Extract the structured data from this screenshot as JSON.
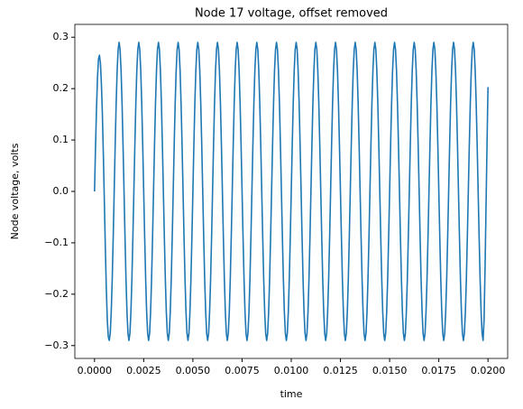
{
  "chart_data": {
    "type": "line",
    "title": "Node 17 voltage, offset removed",
    "xlabel": "time",
    "ylabel": "Node voltage, volts",
    "color": "#1f77b4",
    "xlim": [
      -0.001,
      0.021
    ],
    "ylim": [
      -0.325,
      0.325
    ],
    "xticks": [
      {
        "value": 0,
        "label": "0.0000"
      },
      {
        "value": 0.0025,
        "label": "0.0025"
      },
      {
        "value": 0.005,
        "label": "0.0050"
      },
      {
        "value": 0.0075,
        "label": "0.0075"
      },
      {
        "value": 0.01,
        "label": "0.0100"
      },
      {
        "value": 0.0125,
        "label": "0.0125"
      },
      {
        "value": 0.015,
        "label": "0.0150"
      },
      {
        "value": 0.0175,
        "label": "0.0175"
      },
      {
        "value": 0.02,
        "label": "0.0200"
      }
    ],
    "yticks": [
      {
        "value": -0.3,
        "label": "−0.3"
      },
      {
        "value": -0.2,
        "label": "−0.2"
      },
      {
        "value": -0.1,
        "label": "−0.1"
      },
      {
        "value": 0,
        "label": "0.0"
      },
      {
        "value": 0.1,
        "label": "0.1"
      },
      {
        "value": 0.2,
        "label": "0.2"
      },
      {
        "value": 0.3,
        "label": "0.3"
      }
    ],
    "x": [
      0,
      5e-05,
      0.0001,
      0.00015,
      0.0002,
      0.00025,
      0.0003,
      0.00035,
      0.0004,
      0.00045,
      0.0005,
      0.00055,
      0.0006,
      0.00065,
      0.0007,
      0.00075,
      0.0008,
      0.00085,
      0.0009,
      0.00095,
      0.001,
      0.00105,
      0.0011,
      0.00115,
      0.0012,
      0.00125,
      0.0013,
      0.00135,
      0.0014,
      0.00145,
      0.0015,
      0.00155,
      0.0016,
      0.00165,
      0.0017,
      0.00175,
      0.0018,
      0.00185,
      0.0019,
      0.00195,
      0.002,
      0.00205,
      0.0021,
      0.00215,
      0.0022,
      0.00225,
      0.0023,
      0.00235,
      0.0024,
      0.00245,
      0.0025,
      0.00255,
      0.0026,
      0.00265,
      0.0027,
      0.00275,
      0.0028,
      0.00285,
      0.0029,
      0.00295,
      0.003,
      0.00305,
      0.0031,
      0.00315,
      0.0032,
      0.00325,
      0.0033,
      0.00335,
      0.0034,
      0.00345,
      0.0035,
      0.00355,
      0.0036,
      0.00365,
      0.0037,
      0.00375,
      0.0038,
      0.00385,
      0.0039,
      0.00395,
      0.004,
      0.00405,
      0.0041,
      0.00415,
      0.0042,
      0.00425,
      0.0043,
      0.00435,
      0.0044,
      0.00445,
      0.0045,
      0.00455,
      0.0046,
      0.00465,
      0.0047,
      0.00475,
      0.0048,
      0.00485,
      0.0049,
      0.00495,
      0.005,
      0.00505,
      0.0051,
      0.00515,
      0.0052,
      0.00525,
      0.0053,
      0.00535,
      0.0054,
      0.00545,
      0.0055,
      0.00555,
      0.0056,
      0.00565,
      0.0057,
      0.00575,
      0.0058,
      0.00585,
      0.0059,
      0.00595,
      0.006,
      0.00605,
      0.0061,
      0.00615,
      0.0062,
      0.00625,
      0.0063,
      0.00635,
      0.0064,
      0.00645,
      0.0065,
      0.00655,
      0.0066,
      0.00665,
      0.0067,
      0.00675,
      0.0068,
      0.00685,
      0.0069,
      0.00695,
      0.007,
      0.00705,
      0.0071,
      0.00715,
      0.0072,
      0.00725,
      0.0073,
      0.00735,
      0.0074,
      0.00745,
      0.0075,
      0.00755,
      0.0076,
      0.00765,
      0.0077,
      0.00775,
      0.0078,
      0.00785,
      0.0079,
      0.00795,
      0.008,
      0.00805,
      0.0081,
      0.00815,
      0.0082,
      0.00825,
      0.0083,
      0.00835,
      0.0084,
      0.00845,
      0.0085,
      0.00855,
      0.0086,
      0.00865,
      0.0087,
      0.00875,
      0.0088,
      0.00885,
      0.0089,
      0.00895,
      0.009,
      0.00905,
      0.0091,
      0.00915,
      0.0092,
      0.00925,
      0.0093,
      0.00935,
      0.0094,
      0.00945,
      0.0095,
      0.00955,
      0.0096,
      0.00965,
      0.0097,
      0.00975,
      0.0098,
      0.00985,
      0.0099,
      0.00995,
      0.01,
      0.01005,
      0.0101,
      0.01015,
      0.0102,
      0.01025,
      0.0103,
      0.01035,
      0.0104,
      0.01045,
      0.0105,
      0.01055,
      0.0106,
      0.01065,
      0.0107,
      0.01075,
      0.0108,
      0.01085,
      0.0109,
      0.01095,
      0.011,
      0.01105,
      0.0111,
      0.01115,
      0.0112,
      0.01125,
      0.0113,
      0.01135,
      0.0114,
      0.01145,
      0.0115,
      0.01155,
      0.0116,
      0.01165,
      0.0117,
      0.01175,
      0.0118,
      0.01185,
      0.0119,
      0.01195,
      0.012,
      0.01205,
      0.0121,
      0.01215,
      0.0122,
      0.01225,
      0.0123,
      0.01235,
      0.0124,
      0.01245,
      0.0125,
      0.01255,
      0.0126,
      0.01265,
      0.0127,
      0.01275,
      0.0128,
      0.01285,
      0.0129,
      0.01295,
      0.013,
      0.01305,
      0.0131,
      0.01315,
      0.0132,
      0.01325,
      0.0133,
      0.01335,
      0.0134,
      0.01345,
      0.0135,
      0.01355,
      0.0136,
      0.01365,
      0.0137,
      0.01375,
      0.0138,
      0.01385,
      0.0139,
      0.01395,
      0.014,
      0.01405,
      0.0141,
      0.01415,
      0.0142,
      0.01425,
      0.0143,
      0.01435,
      0.0144,
      0.01445,
      0.0145,
      0.01455,
      0.0146,
      0.01465,
      0.0147,
      0.01475,
      0.0148,
      0.01485,
      0.0149,
      0.01495,
      0.015,
      0.01505,
      0.0151,
      0.01515,
      0.0152,
      0.01525,
      0.0153,
      0.01535,
      0.0154,
      0.01545,
      0.0155,
      0.01555,
      0.0156,
      0.01565,
      0.0157,
      0.01575,
      0.0158,
      0.01585,
      0.0159,
      0.01595,
      0.016,
      0.01605,
      0.0161,
      0.01615,
      0.0162,
      0.01625,
      0.0163,
      0.01635,
      0.0164,
      0.01645,
      0.0165,
      0.01655,
      0.0166,
      0.01665,
      0.0167,
      0.01675,
      0.0168,
      0.01685,
      0.0169,
      0.01695,
      0.017,
      0.01705,
      0.0171,
      0.01715,
      0.0172,
      0.01725,
      0.0173,
      0.01735,
      0.0174,
      0.01745,
      0.0175,
      0.01755,
      0.0176,
      0.01765,
      0.0177,
      0.01775,
      0.0178,
      0.01785,
      0.0179,
      0.01795,
      0.018,
      0.01805,
      0.0181,
      0.01815,
      0.0182,
      0.01825,
      0.0183,
      0.01835,
      0.0184,
      0.01845,
      0.0185,
      0.01855,
      0.0186,
      0.01865,
      0.0187,
      0.01875,
      0.0188,
      0.01885,
      0.0189,
      0.01895,
      0.019,
      0.01905,
      0.0191,
      0.01915,
      0.0192,
      0.01925,
      0.0193,
      0.01935,
      0.0194,
      0.01945,
      0.0195,
      0.01955,
      0.0196,
      0.01965,
      0.0197,
      0.01975,
      0.0198,
      0.01985,
      0.0199,
      0.01995,
      0.02
    ],
    "values": [
      0,
      0.085,
      0.16,
      0.22,
      0.257,
      0.265,
      0.25,
      0.21,
      0.15,
      0.07,
      -0.02,
      -0.11,
      -0.19,
      -0.25,
      -0.283,
      -0.29,
      -0.276,
      -0.235,
      -0.171,
      -0.09,
      0,
      0.09,
      0.171,
      0.235,
      0.276,
      0.29,
      0.276,
      0.235,
      0.171,
      0.09,
      0,
      -0.09,
      -0.171,
      -0.235,
      -0.276,
      -0.29,
      -0.276,
      -0.235,
      -0.171,
      -0.09,
      0,
      0.09,
      0.171,
      0.235,
      0.276,
      0.29,
      0.276,
      0.235,
      0.171,
      0.09,
      0,
      -0.09,
      -0.171,
      -0.235,
      -0.276,
      -0.29,
      -0.276,
      -0.235,
      -0.171,
      -0.09,
      0,
      0.09,
      0.171,
      0.235,
      0.276,
      0.29,
      0.276,
      0.235,
      0.171,
      0.09,
      0,
      -0.09,
      -0.171,
      -0.235,
      -0.276,
      -0.29,
      -0.276,
      -0.235,
      -0.171,
      -0.09,
      0,
      0.09,
      0.171,
      0.235,
      0.276,
      0.29,
      0.276,
      0.235,
      0.171,
      0.09,
      0,
      -0.09,
      -0.171,
      -0.235,
      -0.276,
      -0.29,
      -0.276,
      -0.235,
      -0.171,
      -0.09,
      0,
      0.09,
      0.171,
      0.235,
      0.276,
      0.29,
      0.276,
      0.235,
      0.171,
      0.09,
      0,
      -0.09,
      -0.171,
      -0.235,
      -0.276,
      -0.29,
      -0.276,
      -0.235,
      -0.171,
      -0.09,
      0,
      0.09,
      0.171,
      0.235,
      0.276,
      0.29,
      0.276,
      0.235,
      0.171,
      0.09,
      0,
      -0.09,
      -0.171,
      -0.235,
      -0.276,
      -0.29,
      -0.276,
      -0.235,
      -0.171,
      -0.09,
      0,
      0.09,
      0.171,
      0.235,
      0.276,
      0.29,
      0.276,
      0.235,
      0.171,
      0.09,
      0,
      -0.09,
      -0.171,
      -0.235,
      -0.276,
      -0.29,
      -0.276,
      -0.235,
      -0.171,
      -0.09,
      0,
      0.09,
      0.171,
      0.235,
      0.276,
      0.29,
      0.276,
      0.235,
      0.171,
      0.09,
      0,
      -0.09,
      -0.171,
      -0.235,
      -0.276,
      -0.29,
      -0.276,
      -0.235,
      -0.171,
      -0.09,
      0,
      0.09,
      0.171,
      0.235,
      0.276,
      0.29,
      0.276,
      0.235,
      0.171,
      0.09,
      0,
      -0.09,
      -0.171,
      -0.235,
      -0.276,
      -0.29,
      -0.276,
      -0.235,
      -0.171,
      -0.09,
      0,
      0.09,
      0.171,
      0.235,
      0.276,
      0.29,
      0.276,
      0.235,
      0.171,
      0.09,
      0,
      -0.09,
      -0.171,
      -0.235,
      -0.276,
      -0.29,
      -0.276,
      -0.235,
      -0.171,
      -0.09,
      0,
      0.09,
      0.171,
      0.235,
      0.276,
      0.29,
      0.276,
      0.235,
      0.171,
      0.09,
      0,
      -0.09,
      -0.171,
      -0.235,
      -0.276,
      -0.29,
      -0.276,
      -0.235,
      -0.171,
      -0.09,
      0,
      0.09,
      0.171,
      0.235,
      0.276,
      0.29,
      0.276,
      0.235,
      0.171,
      0.09,
      0,
      -0.09,
      -0.171,
      -0.235,
      -0.276,
      -0.29,
      -0.276,
      -0.235,
      -0.171,
      -0.09,
      0,
      0.09,
      0.171,
      0.235,
      0.276,
      0.29,
      0.276,
      0.235,
      0.171,
      0.09,
      0,
      -0.09,
      -0.171,
      -0.235,
      -0.276,
      -0.29,
      -0.276,
      -0.235,
      -0.171,
      -0.09,
      0,
      0.09,
      0.171,
      0.235,
      0.276,
      0.29,
      0.276,
      0.235,
      0.171,
      0.09,
      0,
      -0.09,
      -0.171,
      -0.235,
      -0.276,
      -0.29,
      -0.276,
      -0.235,
      -0.171,
      -0.09,
      0,
      0.09,
      0.171,
      0.235,
      0.276,
      0.29,
      0.276,
      0.235,
      0.171,
      0.09,
      0,
      -0.09,
      -0.171,
      -0.235,
      -0.276,
      -0.29,
      -0.276,
      -0.235,
      -0.171,
      -0.09,
      0,
      0.09,
      0.171,
      0.235,
      0.276,
      0.29,
      0.276,
      0.235,
      0.171,
      0.09,
      0,
      -0.09,
      -0.171,
      -0.235,
      -0.276,
      -0.29,
      -0.276,
      -0.235,
      -0.171,
      -0.09,
      0,
      0.09,
      0.171,
      0.235,
      0.276,
      0.29,
      0.276,
      0.235,
      0.171,
      0.09,
      0,
      -0.09,
      -0.171,
      -0.235,
      -0.276,
      -0.29,
      -0.276,
      -0.235,
      -0.171,
      -0.09,
      0,
      0.09,
      0.171,
      0.235,
      0.276,
      0.29,
      0.276,
      0.235,
      0.171,
      0.09,
      0,
      -0.09,
      -0.171,
      -0.235,
      -0.276,
      -0.29,
      -0.276,
      -0.235,
      -0.171,
      -0.09,
      0,
      0.09,
      0.171,
      0.235,
      0.276,
      0.29,
      0.276,
      0.235,
      0.171,
      0.09,
      0,
      -0.09,
      -0.171,
      -0.235,
      -0.276,
      -0.29,
      -0.25,
      -0.15,
      -0.03,
      0.09,
      0.203
    ]
  }
}
